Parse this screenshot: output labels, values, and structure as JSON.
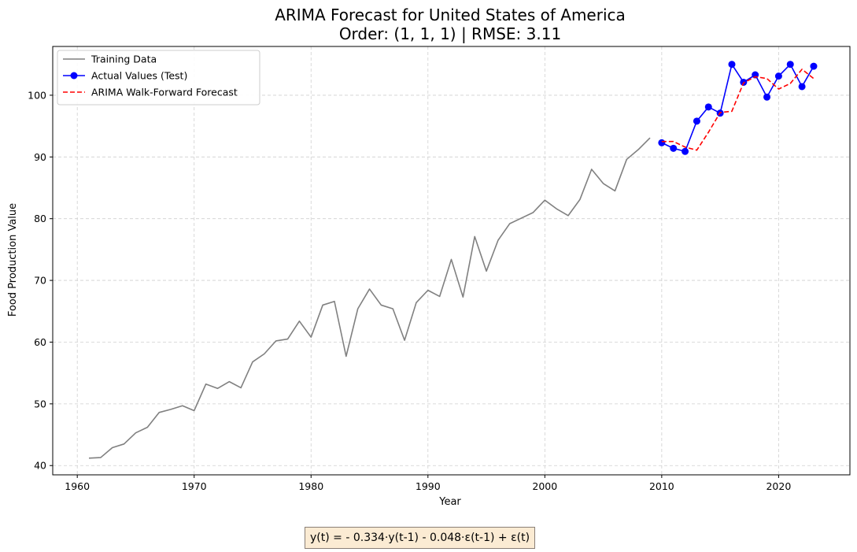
{
  "chart_data": {
    "type": "line",
    "title": "ARIMA Forecast for United States of America",
    "subtitle": "Order: (1, 1, 1) | RMSE: 3.11",
    "xlabel": "Year",
    "ylabel": "Food Production Value",
    "xlim": [
      1957.9,
      2026.1
    ],
    "ylim": [
      38.5,
      107.9
    ],
    "x_ticks": [
      1960,
      1970,
      1980,
      1990,
      2000,
      2010,
      2020
    ],
    "y_ticks": [
      40,
      50,
      60,
      70,
      80,
      90,
      100
    ],
    "grid": true,
    "legend_position": "top-left",
    "series": [
      {
        "name": "Training Data",
        "color": "#808080",
        "style": "solid",
        "x": [
          1961,
          1962,
          1963,
          1964,
          1965,
          1966,
          1967,
          1968,
          1969,
          1970,
          1971,
          1972,
          1973,
          1974,
          1975,
          1976,
          1977,
          1978,
          1979,
          1980,
          1981,
          1982,
          1983,
          1984,
          1985,
          1986,
          1987,
          1988,
          1989,
          1990,
          1991,
          1992,
          1993,
          1994,
          1995,
          1996,
          1997,
          1998,
          1999,
          2000,
          2001,
          2002,
          2003,
          2004,
          2005,
          2006,
          2007,
          2008,
          2009
        ],
        "y": [
          41.2,
          41.3,
          42.9,
          43.5,
          45.3,
          46.2,
          48.6,
          49.1,
          49.7,
          48.9,
          53.2,
          52.5,
          53.6,
          52.6,
          56.8,
          58.1,
          60.2,
          60.5,
          63.4,
          60.8,
          66.0,
          66.6,
          57.7,
          65.4,
          68.6,
          66.0,
          65.4,
          60.3,
          66.4,
          68.4,
          67.4,
          73.4,
          67.3,
          77.1,
          71.5,
          76.5,
          79.2,
          80.1,
          81.0,
          83.0,
          81.6,
          80.5,
          83.1,
          88.0,
          85.7,
          84.5,
          89.6,
          91.2,
          93.1
        ]
      },
      {
        "name": "Actual Values (Test)",
        "color": "#0000ff",
        "style": "solid-markers",
        "x": [
          2010,
          2011,
          2012,
          2013,
          2014,
          2015,
          2016,
          2017,
          2018,
          2019,
          2020,
          2021,
          2022,
          2023
        ],
        "y": [
          92.3,
          91.4,
          90.9,
          95.8,
          98.1,
          97.1,
          105.0,
          102.1,
          103.3,
          99.7,
          103.1,
          105.0,
          101.4,
          104.7
        ]
      },
      {
        "name": "ARIMA Walk-Forward Forecast",
        "color": "#ff0000",
        "style": "dashed",
        "x": [
          2010,
          2011,
          2012,
          2013,
          2014,
          2015,
          2016,
          2017,
          2018,
          2019,
          2020,
          2021,
          2022,
          2023
        ],
        "y": [
          92.5,
          92.5,
          91.6,
          91.1,
          94.0,
          97.2,
          97.4,
          102.0,
          103.0,
          102.7,
          101.0,
          101.9,
          104.2,
          102.7
        ]
      }
    ]
  },
  "equation": "y(t) = - 0.334·y(t-1) - 0.048·ε(t-1) + ε(t)"
}
